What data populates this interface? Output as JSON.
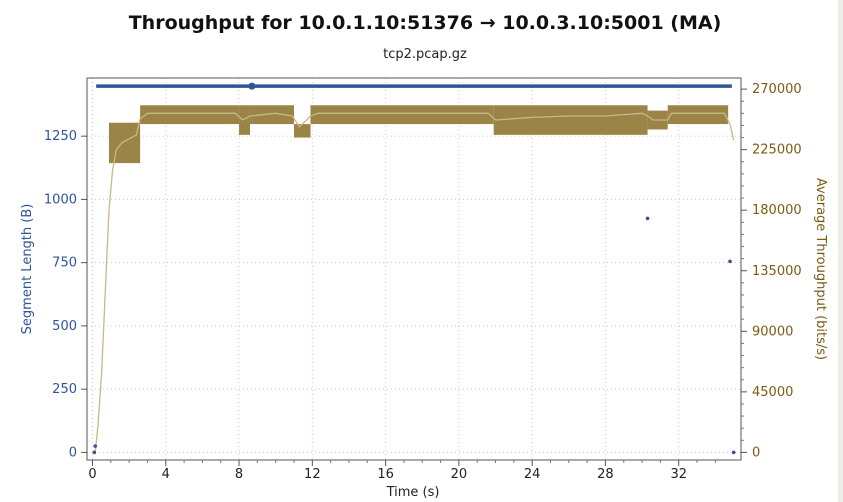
{
  "chart_data": {
    "type": "line",
    "title": "Throughput for 10.0.1.10:51376 → 10.0.3.10:5001 (MA)",
    "subtitle": "tcp2.pcap.gz",
    "xlabel": "Time (s)",
    "ylabel_left": "Segment Length (B)",
    "ylabel_right": "Average Throughput (bits/s)",
    "xlim": [
      -0.3,
      35.4
    ],
    "ylim_left": [
      -30,
      1480
    ],
    "ylim_right": [
      0,
      270000
    ],
    "x_ticks": [
      0,
      4,
      8,
      12,
      16,
      20,
      24,
      28,
      32
    ],
    "y_left_ticks": [
      0,
      250,
      500,
      750,
      1000,
      1250
    ],
    "y_right_ticks": [
      0,
      45000,
      90000,
      135000,
      180000,
      225000,
      270000
    ],
    "grid": true,
    "colors": {
      "segment": "#2f5597",
      "throughput_fill": "#9c8447",
      "throughput_line": "#c8b88a"
    },
    "series": [
      {
        "axis": "left",
        "kind": "scatter",
        "points": [
          [
            0.1,
            0
          ],
          [
            0.15,
            25
          ],
          [
            30.3,
            925
          ],
          [
            34.8,
            755
          ],
          [
            35.0,
            0
          ]
        ],
        "dense_segments": [
          {
            "x_start": 0.2,
            "x_end": 34.9,
            "y": 1448
          }
        ],
        "marker_highlight": [
          8.7,
          1448
        ]
      },
      {
        "axis": "right",
        "kind": "line",
        "points": [
          [
            0.15,
            0
          ],
          [
            0.3,
            20000
          ],
          [
            0.5,
            60000
          ],
          [
            0.7,
            120000
          ],
          [
            0.9,
            180000
          ],
          [
            1.1,
            210000
          ],
          [
            1.3,
            225000
          ],
          [
            1.6,
            230000
          ],
          [
            2.0,
            233000
          ],
          [
            2.4,
            236000
          ],
          [
            2.6,
            248000
          ],
          [
            3.0,
            252000
          ],
          [
            4.0,
            252000
          ],
          [
            6.0,
            252000
          ],
          [
            7.8,
            252000
          ],
          [
            8.2,
            247000
          ],
          [
            8.6,
            250000
          ],
          [
            10.0,
            252000
          ],
          [
            10.9,
            250000
          ],
          [
            11.3,
            242000
          ],
          [
            11.9,
            250000
          ],
          [
            12.3,
            252000
          ],
          [
            14.0,
            252000
          ],
          [
            16.0,
            252000
          ],
          [
            18.0,
            252000
          ],
          [
            20.0,
            252000
          ],
          [
            21.6,
            252000
          ],
          [
            22.0,
            247000
          ],
          [
            23.0,
            248000
          ],
          [
            24.0,
            249000
          ],
          [
            26.0,
            250000
          ],
          [
            28.0,
            250000
          ],
          [
            30.0,
            252000
          ],
          [
            30.3,
            250000
          ],
          [
            30.6,
            247000
          ],
          [
            31.4,
            247000
          ],
          [
            31.6,
            252000
          ],
          [
            33.0,
            252000
          ],
          [
            34.5,
            252000
          ],
          [
            34.8,
            244000
          ],
          [
            35.0,
            232000
          ]
        ],
        "band_segments": [
          {
            "x_start": 0.9,
            "x_end": 2.6,
            "ymin": 215000,
            "ymax": 245000
          },
          {
            "x_start": 2.6,
            "x_end": 8.0,
            "ymin": 244000,
            "ymax": 258000
          },
          {
            "x_start": 8.0,
            "x_end": 8.6,
            "ymin": 236000,
            "ymax": 258000
          },
          {
            "x_start": 8.6,
            "x_end": 11.0,
            "ymin": 244000,
            "ymax": 258000
          },
          {
            "x_start": 11.0,
            "x_end": 11.9,
            "ymin": 234000,
            "ymax": 244000
          },
          {
            "x_start": 11.9,
            "x_end": 21.9,
            "ymin": 244000,
            "ymax": 258000
          },
          {
            "x_start": 21.9,
            "x_end": 30.3,
            "ymin": 236000,
            "ymax": 258000
          },
          {
            "x_start": 30.3,
            "x_end": 31.4,
            "ymin": 240000,
            "ymax": 254000
          },
          {
            "x_start": 31.4,
            "x_end": 34.7,
            "ymin": 244000,
            "ymax": 258000
          }
        ]
      }
    ]
  }
}
